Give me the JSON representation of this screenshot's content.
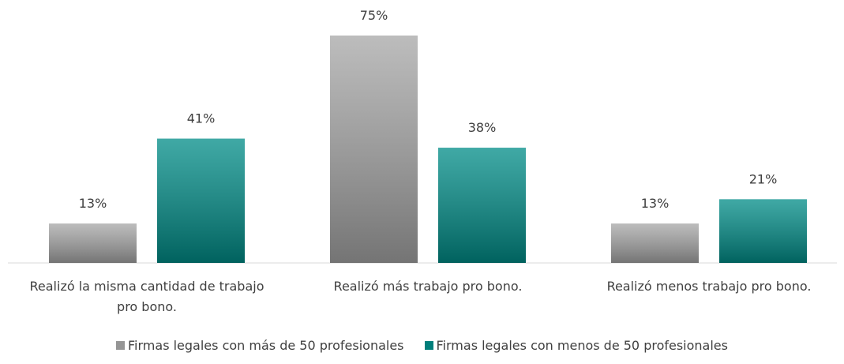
{
  "chart_data": {
    "type": "bar",
    "categories": [
      "Realizó la misma cantidad de trabajo pro bono.",
      "Realizó más trabajo pro bono.",
      "Realizó menos trabajo pro bono."
    ],
    "series": [
      {
        "name": "Firmas legales con más de 50 profesionales",
        "color": "#a6a6a6",
        "values": [
          13,
          75,
          13
        ],
        "value_labels": [
          "13%",
          "75%",
          "13%"
        ]
      },
      {
        "name": "Firmas legales con menos de 50 profesionales",
        "color": "#008c87",
        "values": [
          41,
          38,
          21
        ],
        "value_labels": [
          "41%",
          "38%",
          "21%"
        ]
      }
    ]
  }
}
